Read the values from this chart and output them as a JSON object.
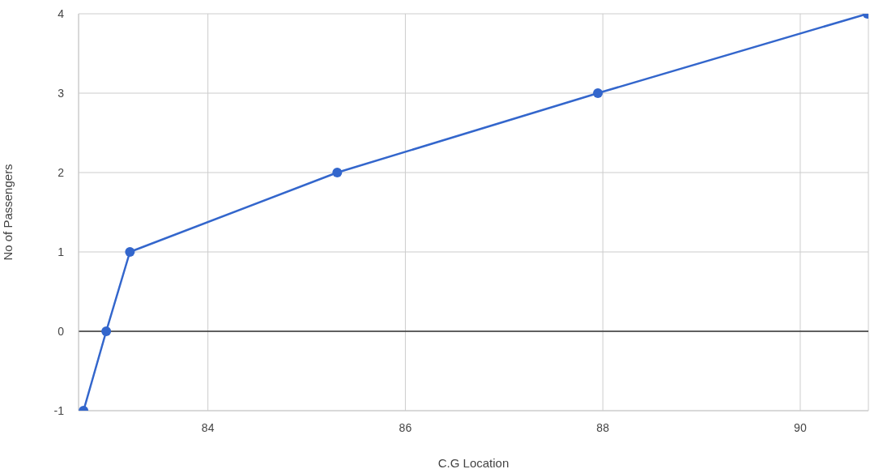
{
  "chart_data": {
    "type": "line",
    "xlabel": "C.G Location",
    "ylabel": "No of Passengers",
    "x": [
      82.74,
      82.97,
      83.21,
      85.31,
      87.95,
      90.68
    ],
    "series": [
      {
        "color": "#3366cc",
        "values": [
          -1,
          0,
          1,
          2,
          3,
          4
        ]
      }
    ],
    "xlim": [
      82.69,
      90.69
    ],
    "xticks": [
      84,
      86,
      88,
      90
    ],
    "ylim": [
      -1,
      4
    ],
    "yticks": [
      -1,
      0,
      1,
      2,
      3,
      4
    ],
    "grid": true,
    "marker": "circle",
    "line_style": "solid",
    "ref_lines": [
      {
        "axis": "y",
        "value": 0,
        "color": "#333333"
      }
    ]
  }
}
